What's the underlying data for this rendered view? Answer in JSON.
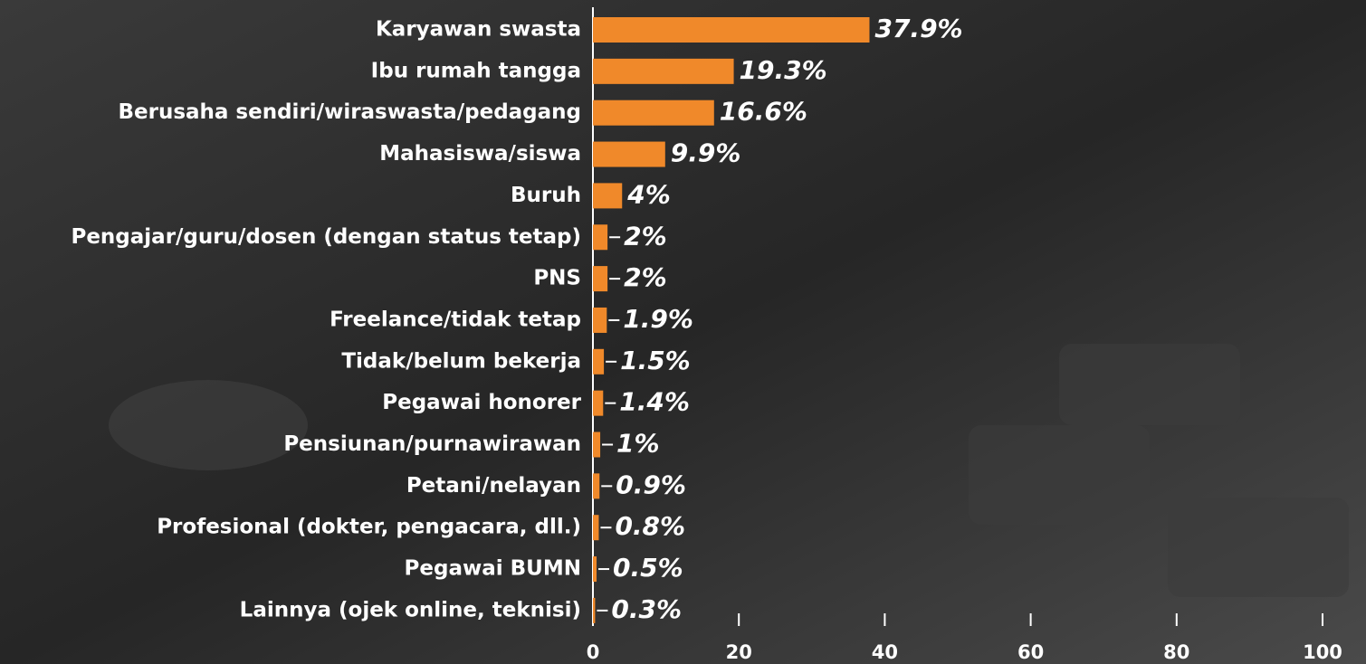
{
  "chart_data": {
    "type": "bar",
    "orientation": "horizontal",
    "categories": [
      "Karyawan swasta",
      "Ibu rumah tangga",
      "Berusaha sendiri/wiraswasta/pedagang",
      "Mahasiswa/siswa",
      "Buruh",
      "Pengajar/guru/dosen (dengan status tetap)",
      "PNS",
      "Freelance/tidak tetap",
      "Tidak/belum bekerja",
      "Pegawai honorer",
      "Pensiunan/purnawirawan",
      "Petani/nelayan",
      "Profesional (dokter, pengacara, dll.)",
      "Pegawai BUMN",
      "Lainnya (ojek online, teknisi)"
    ],
    "values": [
      37.9,
      19.3,
      16.6,
      9.9,
      4,
      2,
      2,
      1.9,
      1.5,
      1.4,
      1,
      0.9,
      0.8,
      0.5,
      0.3
    ],
    "value_labels": [
      "37.9%",
      "19.3%",
      "16.6%",
      "9.9%",
      "4%",
      "2%",
      "2%",
      "1.9%",
      "1.5%",
      "1.4%",
      "1%",
      "0.9%",
      "0.8%",
      "0.5%",
      "0.3%"
    ],
    "color": "#f0892a",
    "xlim": [
      0,
      100
    ],
    "xticks": [
      0,
      20,
      40,
      60,
      80,
      100
    ]
  }
}
